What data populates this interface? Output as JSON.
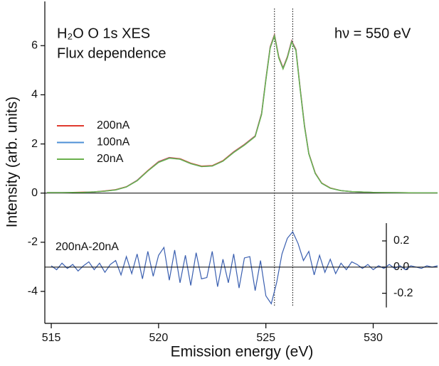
{
  "chart_data": {
    "type": "line",
    "title": "H₂O O 1s XES",
    "subtitle": "Flux dependence",
    "annotation": "hν = 550 eV",
    "xlabel": "Emission energy (eV)",
    "ylabel": "Intensity (arb. units)",
    "xlim": [
      514.7,
      533
    ],
    "ylim": [
      -5.3,
      7.8
    ],
    "y2lim": [
      -0.43,
      2.03
    ],
    "xticks": [
      515,
      520,
      525,
      530
    ],
    "yticks": [
      -4,
      -2,
      0,
      2,
      4,
      6
    ],
    "y2ticks": [
      -0.2,
      {
        "value": 0,
        "label": "0.0"
      },
      0.2
    ],
    "vlines": [
      525.4,
      526.25
    ],
    "x": [
      514.8,
      515.5,
      516,
      516.5,
      517,
      517.5,
      518,
      518.5,
      519,
      519.5,
      520,
      520.5,
      521,
      521.5,
      522,
      522.5,
      523,
      523.5,
      524,
      524.5,
      524.8,
      525,
      525.2,
      525.4,
      525.6,
      525.8,
      526,
      526.2,
      526.4,
      526.6,
      526.8,
      527,
      527.3,
      527.6,
      528,
      528.5,
      529,
      530,
      531,
      532,
      533
    ],
    "series": [
      {
        "name": "200nA",
        "color": "#e03a2e",
        "values": [
          0.02,
          0.02,
          0.03,
          0.04,
          0.05,
          0.09,
          0.14,
          0.26,
          0.52,
          0.92,
          1.28,
          1.45,
          1.4,
          1.22,
          1.1,
          1.12,
          1.32,
          1.68,
          1.98,
          2.33,
          3.25,
          4.65,
          5.95,
          6.45,
          5.55,
          5.1,
          5.55,
          6.2,
          5.85,
          4.25,
          2.75,
          1.62,
          0.82,
          0.41,
          0.21,
          0.1,
          0.06,
          0.03,
          0.02,
          0.01,
          0.01
        ]
      },
      {
        "name": "100nA",
        "color": "#4d8fd6",
        "values": [
          0.02,
          0.02,
          0.03,
          0.03,
          0.05,
          0.08,
          0.13,
          0.25,
          0.51,
          0.9,
          1.26,
          1.43,
          1.38,
          1.2,
          1.08,
          1.1,
          1.3,
          1.66,
          1.96,
          2.31,
          3.22,
          4.62,
          5.92,
          6.42,
          5.52,
          5.07,
          5.52,
          6.17,
          5.82,
          4.22,
          2.72,
          1.6,
          0.8,
          0.4,
          0.2,
          0.1,
          0.06,
          0.03,
          0.02,
          0.01,
          0.01
        ]
      },
      {
        "name": "20nA",
        "color": "#6ab04c",
        "values": [
          0.02,
          0.02,
          0.03,
          0.03,
          0.05,
          0.08,
          0.13,
          0.25,
          0.5,
          0.9,
          1.25,
          1.42,
          1.38,
          1.2,
          1.08,
          1.1,
          1.3,
          1.65,
          1.95,
          2.3,
          3.2,
          4.6,
          5.9,
          6.4,
          5.5,
          5.05,
          5.5,
          6.15,
          5.8,
          4.2,
          2.7,
          1.6,
          0.8,
          0.4,
          0.2,
          0.1,
          0.06,
          0.03,
          0.02,
          0.01,
          0.01
        ]
      },
      {
        "name": "200nA-20nA",
        "color": "#3a5fb0",
        "axis": "y2",
        "x": [
          515,
          515.25,
          515.5,
          515.75,
          516,
          516.25,
          516.5,
          516.75,
          517,
          517.25,
          517.5,
          517.75,
          518,
          518.25,
          518.5,
          518.75,
          519,
          519.25,
          519.5,
          519.75,
          520,
          520.25,
          520.5,
          520.75,
          521,
          521.25,
          521.5,
          521.75,
          522,
          522.25,
          522.5,
          522.75,
          523,
          523.25,
          523.5,
          523.75,
          524,
          524.25,
          524.5,
          524.75,
          525,
          525.25,
          525.5,
          525.75,
          526,
          526.25,
          526.5,
          526.75,
          527,
          527.25,
          527.5,
          527.75,
          528,
          528.25,
          528.5,
          528.75,
          529,
          529.25,
          529.5,
          529.75,
          530,
          530.25,
          530.5,
          530.75,
          531,
          531.25,
          531.5,
          531.75,
          532,
          532.25,
          532.5,
          532.75,
          533
        ],
        "values": [
          0.01,
          -0.02,
          0.03,
          -0.01,
          0.02,
          -0.03,
          0.01,
          0.04,
          -0.02,
          0.03,
          -0.04,
          0.02,
          0.05,
          -0.06,
          0.08,
          -0.05,
          0.1,
          -0.09,
          0.12,
          -0.07,
          0.09,
          0.15,
          -0.1,
          0.13,
          -0.12,
          0.09,
          -0.14,
          0.11,
          -0.09,
          -0.08,
          0.12,
          -0.15,
          0.06,
          -0.12,
          0.1,
          -0.16,
          0.07,
          0.08,
          -0.18,
          0.05,
          -0.22,
          -0.28,
          -0.12,
          0.1,
          0.22,
          0.27,
          0.18,
          0.05,
          0.12,
          -0.06,
          0.09,
          -0.04,
          0.06,
          -0.05,
          0.03,
          -0.02,
          0.04,
          0.02,
          -0.01,
          0.02,
          -0.02,
          0.01,
          -0.01,
          0.02,
          -0.01,
          0.01,
          -0.02,
          0.01,
          0.0,
          -0.01,
          0.01,
          0.0,
          0.01
        ]
      }
    ]
  }
}
